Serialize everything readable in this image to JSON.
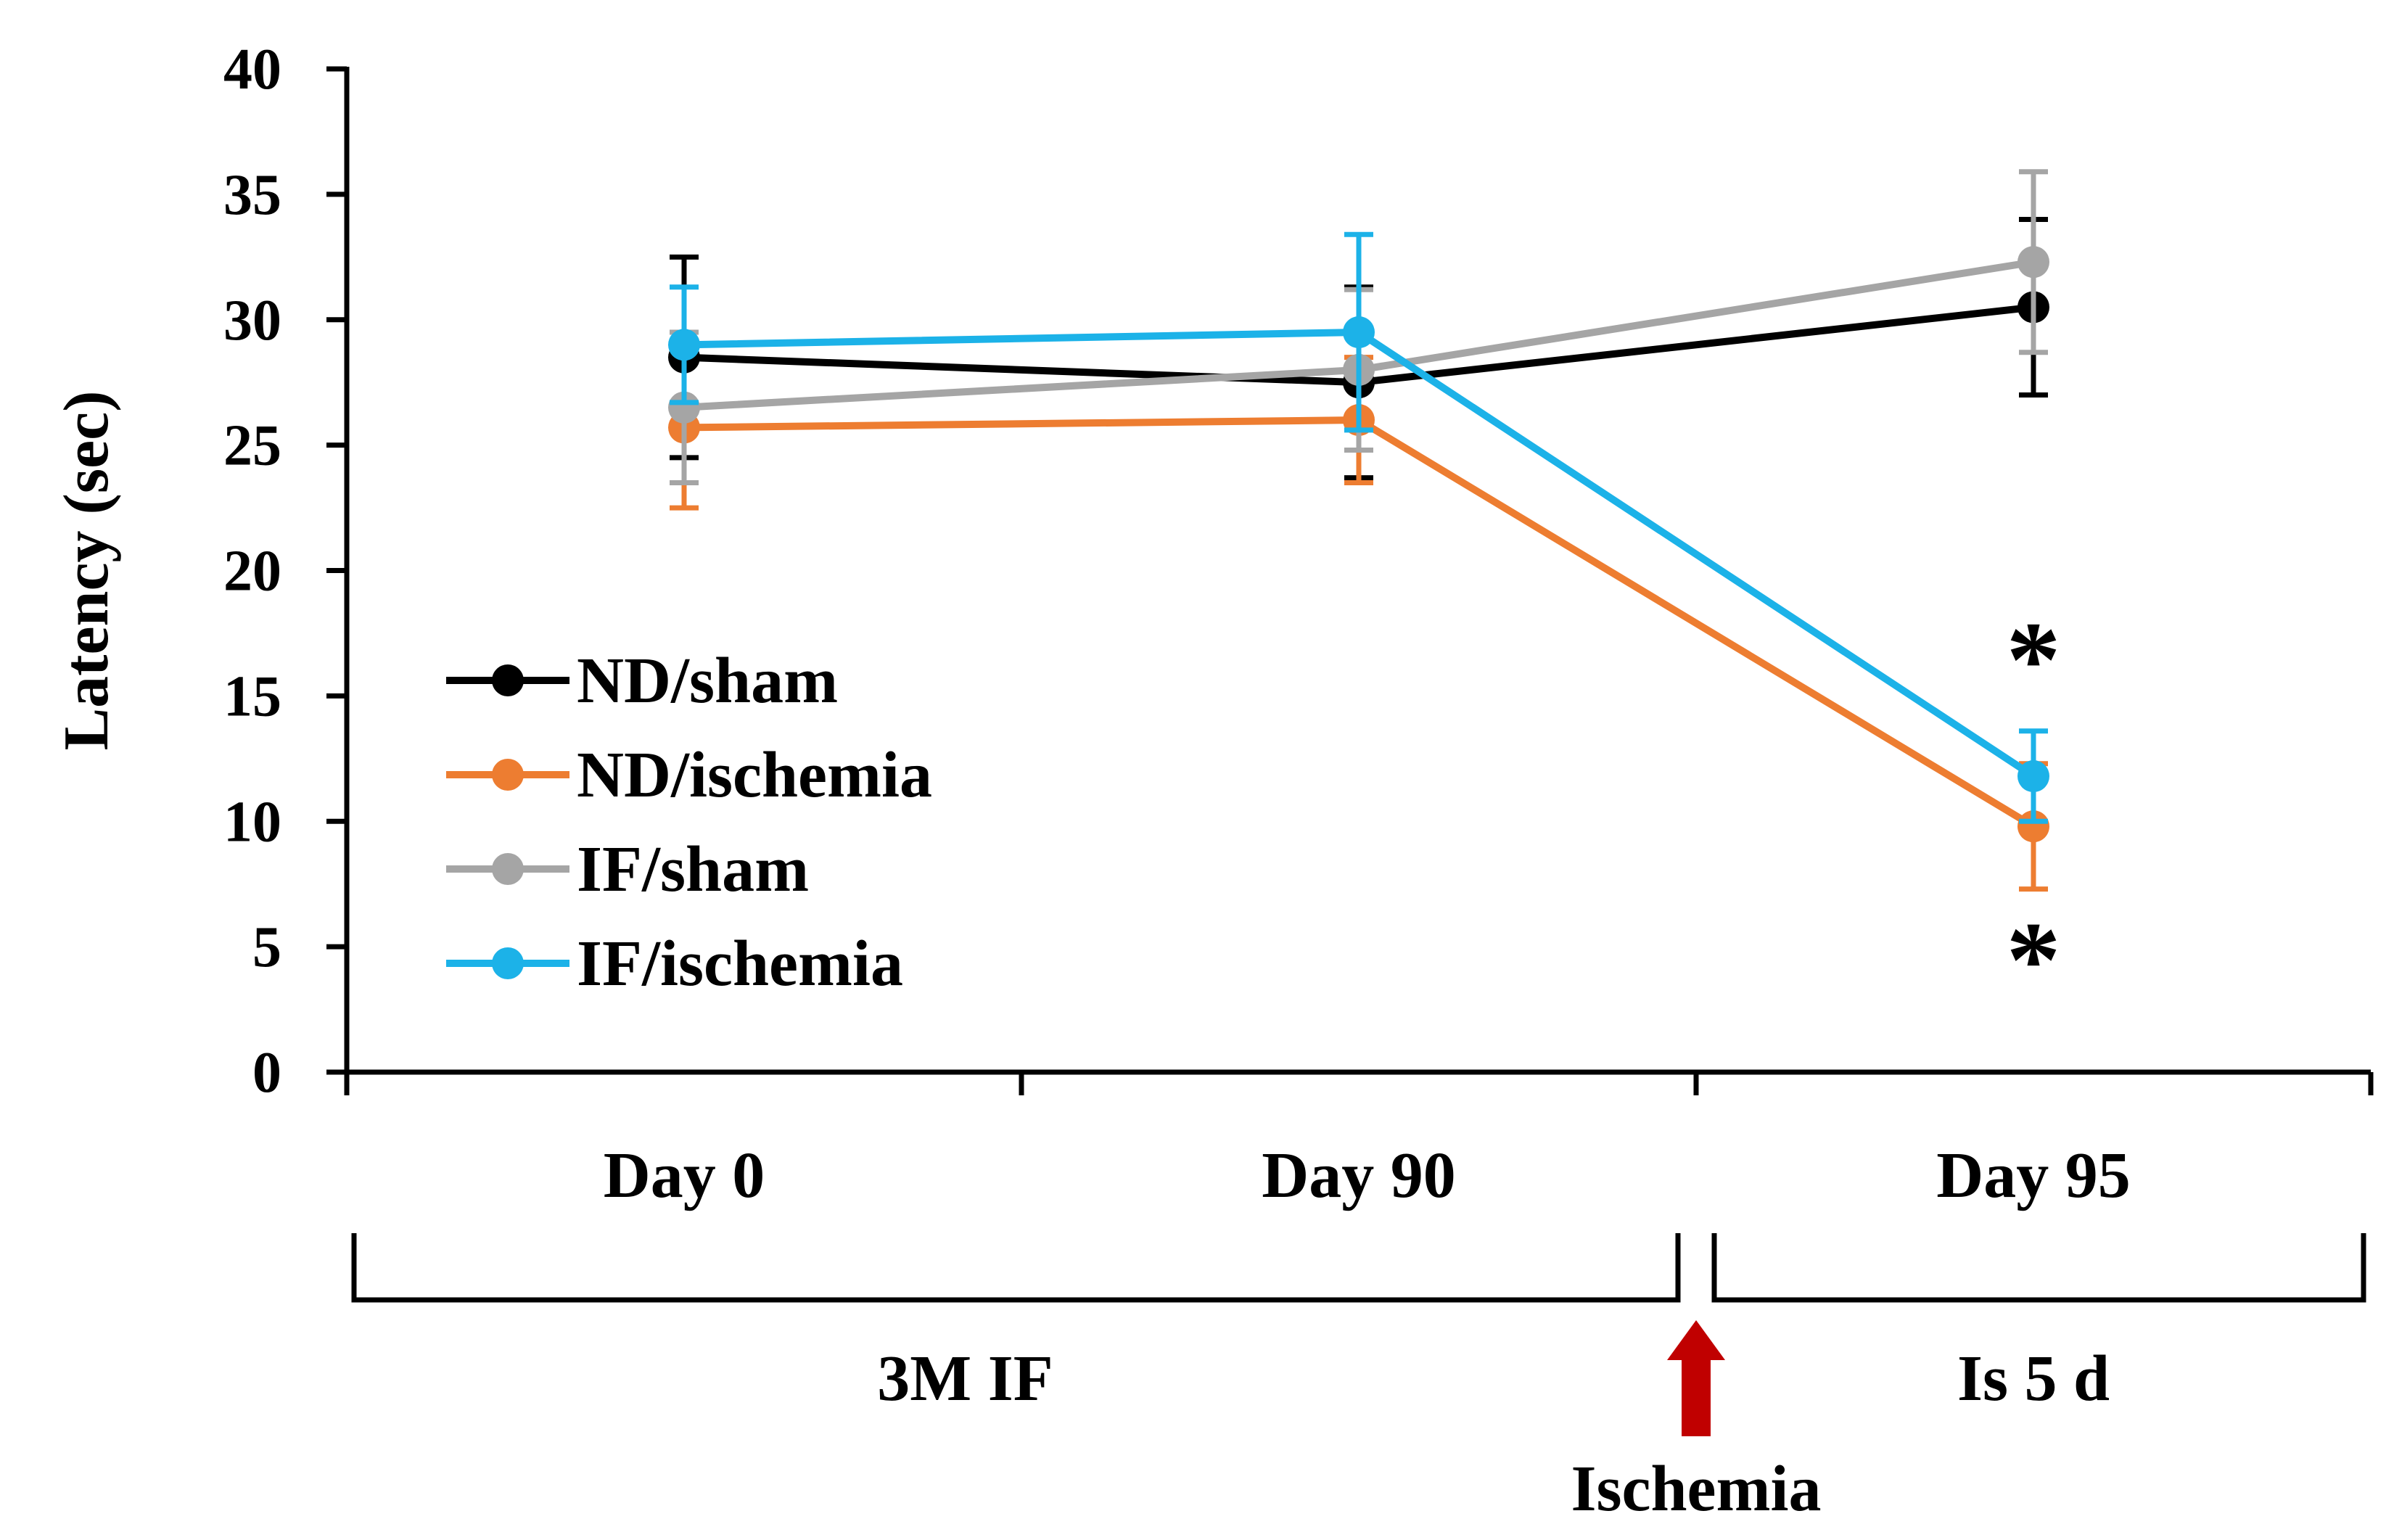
{
  "chart_data": {
    "type": "line",
    "ylabel": "Latency (sec)",
    "ylim": [
      0,
      40
    ],
    "yticks": [
      0,
      5,
      10,
      15,
      20,
      25,
      30,
      35,
      40
    ],
    "categories": [
      "Day 0",
      "Day 90",
      "Day 95"
    ],
    "series": [
      {
        "name": "ND/sham",
        "color": "#000000",
        "values": [
          28.5,
          27.5,
          30.5
        ],
        "errors": [
          4.0,
          3.8,
          3.5
        ]
      },
      {
        "name": "ND/ischemia",
        "color": "#ED7D31",
        "values": [
          25.7,
          26.0,
          9.8
        ],
        "errors": [
          3.2,
          2.5,
          2.5
        ]
      },
      {
        "name": "IF/sham",
        "color": "#A5A5A5",
        "values": [
          26.5,
          28.0,
          32.3
        ],
        "errors": [
          3.0,
          3.2,
          3.6
        ]
      },
      {
        "name": "IF/ischemia",
        "color": "#1CB2E8",
        "values": [
          29.0,
          29.5,
          11.8
        ],
        "errors": [
          2.3,
          3.9,
          1.8
        ]
      }
    ],
    "significance_marks": [
      {
        "text": "*",
        "series": "IF/ischemia",
        "category": "Day 95",
        "position": "above"
      },
      {
        "text": "*",
        "series": "ND/ischemia",
        "category": "Day 95",
        "position": "below"
      }
    ],
    "periods": [
      {
        "label": "3M IF",
        "from": "Day 0",
        "to": "Day 90"
      },
      {
        "label": "Is 5 d",
        "from": "Day 95",
        "to": "Day 95"
      }
    ],
    "event_marker": {
      "label": "Ischemia",
      "color": "#C00000"
    },
    "legend_position": "left-middle",
    "grid": false
  }
}
